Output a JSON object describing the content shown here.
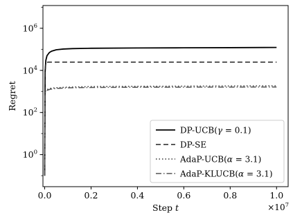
{
  "chart_data": {
    "type": "line",
    "xlabel": "Step t",
    "ylabel": "Regret",
    "x_scale": "linear",
    "y_scale": "log",
    "xlim": [
      -75000,
      10500000
    ],
    "ylim": [
      0.03,
      12000000
    ],
    "x_ticks": [
      {
        "value": 0,
        "label": "0.0"
      },
      {
        "value": 2000000,
        "label": "0.2"
      },
      {
        "value": 4000000,
        "label": "0.4"
      },
      {
        "value": 6000000,
        "label": "0.6"
      },
      {
        "value": 8000000,
        "label": "0.8"
      },
      {
        "value": 10000000,
        "label": "1.0"
      }
    ],
    "x_offset_label": "×10^7",
    "y_ticks": [
      {
        "value": 1,
        "base": "10",
        "exp": "0"
      },
      {
        "value": 100,
        "base": "10",
        "exp": "2"
      },
      {
        "value": 10000,
        "base": "10",
        "exp": "4"
      },
      {
        "value": 1000000,
        "base": "10",
        "exp": "6"
      }
    ],
    "grid": false,
    "legend_position": "lower-right",
    "series": [
      {
        "name": "DP-UCB(γ = 0.1)",
        "legend_plain": "DP-UCB(",
        "legend_math": "γ = 0.1",
        "style": "solid",
        "width": 1.8,
        "color": "#000000",
        "x": [
          0,
          20000,
          50000,
          100000,
          200000,
          300000,
          500000,
          800000,
          1200000,
          2000000,
          4000000,
          6000000,
          8000000,
          10000000
        ],
        "y": [
          0.1,
          9000,
          30000,
          50000,
          70000,
          82000,
          95000,
          103000,
          108000,
          112000,
          116000,
          118000,
          120000,
          123000
        ]
      },
      {
        "name": "DP-SE",
        "legend_plain": "DP-SE",
        "legend_math": "",
        "style": "dashed",
        "width": 1.5,
        "color": "#222222",
        "x": [
          0,
          20000,
          40000,
          80000,
          150000,
          1000000,
          4000000,
          7000000,
          10000000
        ],
        "y": [
          0.1,
          8000,
          20000,
          24000,
          24500,
          24500,
          24500,
          24500,
          24500
        ]
      },
      {
        "name": "AdaP-UCB(α = 3.1)",
        "legend_plain": "AdaP-UCB(",
        "legend_math": "α = 3.1",
        "style": "dotted",
        "width": 1.5,
        "color": "#333333",
        "x": [
          0,
          15000,
          30000,
          60000,
          120000,
          250000,
          500000,
          1000000,
          2000000,
          4000000,
          7000000,
          10000000
        ],
        "y": [
          0.1,
          700,
          1000,
          1150,
          1250,
          1400,
          1500,
          1600,
          1700,
          1750,
          1800,
          1850
        ]
      },
      {
        "name": "AdaP-KLUCB(α = 3.1)",
        "legend_plain": "AdaP-KLUCB(",
        "legend_math": "α = 3.1",
        "style": "dashdot",
        "width": 1.5,
        "color": "#555555",
        "x": [
          0,
          15000,
          30000,
          60000,
          120000,
          250000,
          500000,
          1000000,
          2000000,
          4000000,
          7000000,
          10000000
        ],
        "y": [
          0.1,
          600,
          900,
          1050,
          1150,
          1280,
          1380,
          1480,
          1540,
          1580,
          1600,
          1620
        ]
      }
    ]
  }
}
